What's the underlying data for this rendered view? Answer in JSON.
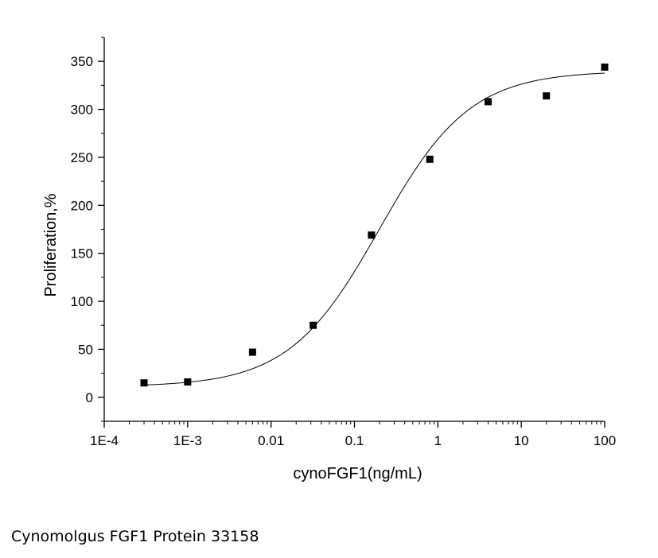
{
  "caption": "Cynomolgus FGF1 Protein 33158",
  "chart_data": {
    "type": "scatter",
    "title": "",
    "xlabel": "cynoFGF1(ng/mL)",
    "ylabel": "Proliferation,%",
    "x_scale": "log",
    "xlim": [
      0.0001,
      100
    ],
    "ylim": [
      -25,
      375
    ],
    "x_ticks": [
      {
        "value": 0.0001,
        "label": "1E-4"
      },
      {
        "value": 0.001,
        "label": "1E-3"
      },
      {
        "value": 0.01,
        "label": "0.01"
      },
      {
        "value": 0.1,
        "label": "0.1"
      },
      {
        "value": 1,
        "label": "1"
      },
      {
        "value": 10,
        "label": "10"
      },
      {
        "value": 100,
        "label": "100"
      }
    ],
    "y_ticks": [
      {
        "value": 0,
        "label": "0"
      },
      {
        "value": 50,
        "label": "50"
      },
      {
        "value": 100,
        "label": "100"
      },
      {
        "value": 150,
        "label": "150"
      },
      {
        "value": 200,
        "label": "200"
      },
      {
        "value": 250,
        "label": "250"
      },
      {
        "value": 300,
        "label": "300"
      },
      {
        "value": 350,
        "label": "350"
      }
    ],
    "grid": false,
    "legend": "none",
    "series": [
      {
        "marker": "square",
        "color": "#000000",
        "points": [
          {
            "x": 0.0003,
            "y": 15
          },
          {
            "x": 0.001,
            "y": 16
          },
          {
            "x": 0.006,
            "y": 47
          },
          {
            "x": 0.032,
            "y": 75
          },
          {
            "x": 0.16,
            "y": 169
          },
          {
            "x": 0.8,
            "y": 248
          },
          {
            "x": 4,
            "y": 308
          },
          {
            "x": 20,
            "y": 314
          },
          {
            "x": 100,
            "y": 344
          }
        ]
      }
    ],
    "fit_curve": {
      "model": "four-parameter logistic",
      "bottom": 11,
      "top": 340,
      "ec50": 0.2,
      "hill": 0.8,
      "x_range": [
        0.0003,
        100
      ],
      "color": "#000000"
    }
  }
}
